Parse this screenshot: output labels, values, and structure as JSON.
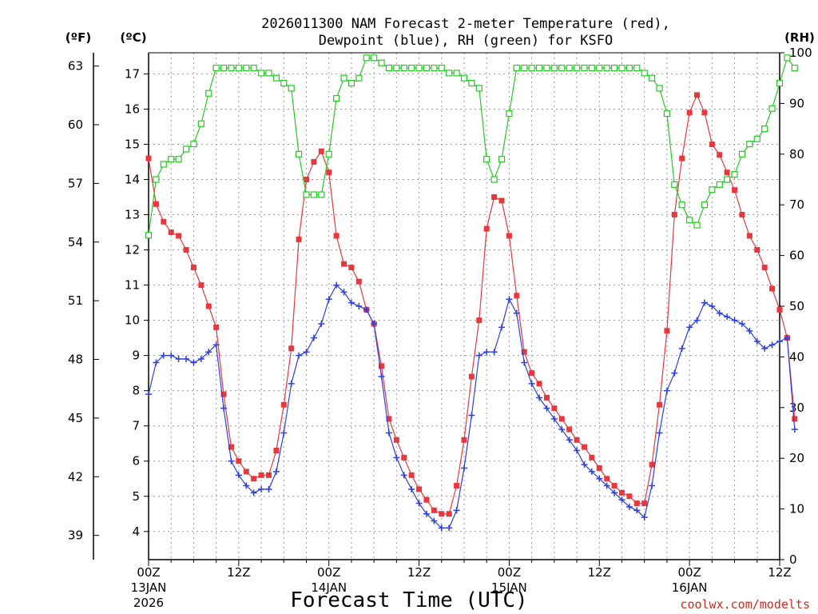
{
  "chart_data": {
    "type": "line",
    "title_line1": "2026011300 NAM Forecast 2-meter Temperature (red),",
    "title_line2": "Dewpoint (blue), RH (green) for KSFO",
    "xlabel": "Forecast Time (UTC)",
    "credit": "coolwx.com/modelts",
    "units": {
      "fahrenheit": "(ºF)",
      "celsius": "(ºC)",
      "rh": "(RH)"
    },
    "x_range_hours": [
      0,
      84
    ],
    "ylim_celsius": [
      3.2,
      17.6
    ],
    "ylim_rh": [
      0,
      100
    ],
    "x_ticks": [
      {
        "hour": 0,
        "label": "00Z",
        "date": "13JAN",
        "year": "2026"
      },
      {
        "hour": 12,
        "label": "12Z",
        "date": "",
        "year": ""
      },
      {
        "hour": 24,
        "label": "00Z",
        "date": "14JAN",
        "year": ""
      },
      {
        "hour": 36,
        "label": "12Z",
        "date": "",
        "year": ""
      },
      {
        "hour": 48,
        "label": "00Z",
        "date": "15JAN",
        "year": ""
      },
      {
        "hour": 60,
        "label": "12Z",
        "date": "",
        "year": ""
      },
      {
        "hour": 72,
        "label": "00Z",
        "date": "16JAN",
        "year": ""
      },
      {
        "hour": 84,
        "label": "12Z",
        "date": "",
        "year": ""
      }
    ],
    "celsius_ticks": [
      4,
      5,
      6,
      7,
      8,
      9,
      10,
      11,
      12,
      13,
      14,
      15,
      16,
      17
    ],
    "fahrenheit_ticks": [
      39,
      42,
      45,
      48,
      51,
      54,
      57,
      60,
      63
    ],
    "rh_ticks": [
      0,
      10,
      20,
      30,
      40,
      50,
      60,
      70,
      80,
      90,
      100
    ],
    "series": [
      {
        "name": "Temperature",
        "unit": "C",
        "color": "#e8383d",
        "marker": "filled-square",
        "values": [
          14.6,
          13.3,
          12.8,
          12.5,
          12.4,
          12.0,
          11.5,
          11.0,
          10.4,
          9.8,
          7.9,
          6.4,
          6.0,
          5.7,
          5.5,
          5.6,
          5.6,
          6.3,
          7.6,
          9.2,
          12.3,
          14.0,
          14.5,
          14.8,
          14.2,
          12.4,
          11.6,
          11.5,
          11.1,
          10.3,
          9.9,
          8.7,
          7.2,
          6.6,
          6.1,
          5.6,
          5.2,
          4.9,
          4.6,
          4.5,
          4.5,
          5.3,
          6.6,
          8.4,
          10.0,
          12.6,
          13.5,
          13.4,
          12.4,
          10.7,
          9.1,
          8.5,
          8.2,
          7.8,
          7.5,
          7.2,
          6.9,
          6.6,
          6.4,
          6.1,
          5.8,
          5.5,
          5.3,
          5.1,
          5.0,
          4.8,
          4.8,
          5.9,
          7.6,
          9.7,
          13.0,
          14.6,
          15.9,
          16.4,
          15.9,
          15.0,
          14.7,
          14.2,
          13.7,
          13.0,
          12.4,
          12.0,
          11.5,
          10.9,
          10.3,
          9.5,
          7.2
        ]
      },
      {
        "name": "Dewpoint",
        "unit": "C",
        "color": "#2d3fe0",
        "marker": "plus",
        "values": [
          7.9,
          8.8,
          9.0,
          9.0,
          8.9,
          8.9,
          8.8,
          8.9,
          9.1,
          9.3,
          7.5,
          6.0,
          5.6,
          5.3,
          5.1,
          5.2,
          5.2,
          5.7,
          6.8,
          8.2,
          9.0,
          9.1,
          9.5,
          9.9,
          10.6,
          11.0,
          10.8,
          10.5,
          10.4,
          10.3,
          9.9,
          8.4,
          6.8,
          6.1,
          5.6,
          5.2,
          4.8,
          4.5,
          4.3,
          4.1,
          4.1,
          4.6,
          5.8,
          7.3,
          9.0,
          9.1,
          9.1,
          9.8,
          10.6,
          10.2,
          8.8,
          8.2,
          7.8,
          7.5,
          7.2,
          6.9,
          6.6,
          6.3,
          5.9,
          5.7,
          5.5,
          5.3,
          5.1,
          4.9,
          4.7,
          4.6,
          4.4,
          5.3,
          6.8,
          8.0,
          8.5,
          9.2,
          9.8,
          10.0,
          10.5,
          10.4,
          10.2,
          10.1,
          10.0,
          9.9,
          9.7,
          9.4,
          9.2,
          9.3,
          9.4,
          9.5,
          6.9
        ]
      },
      {
        "name": "Relative Humidity",
        "unit": "%",
        "color": "#22cc22",
        "marker": "open-square",
        "values": [
          64,
          75,
          78,
          79,
          79,
          81,
          82,
          86,
          92,
          97,
          97,
          97,
          97,
          97,
          97,
          96,
          96,
          95,
          94,
          93,
          80,
          72,
          72,
          72,
          80,
          91,
          95,
          94,
          95,
          99,
          99,
          98,
          97,
          97,
          97,
          97,
          97,
          97,
          97,
          97,
          96,
          96,
          95,
          94,
          93,
          79,
          75,
          79,
          88,
          97,
          97,
          97,
          97,
          97,
          97,
          97,
          97,
          97,
          97,
          97,
          97,
          97,
          97,
          97,
          97,
          97,
          96,
          95,
          93,
          88,
          74,
          70,
          67,
          66,
          70,
          73,
          74,
          75,
          76,
          80,
          82,
          83,
          85,
          89,
          94,
          99,
          97
        ]
      }
    ]
  }
}
